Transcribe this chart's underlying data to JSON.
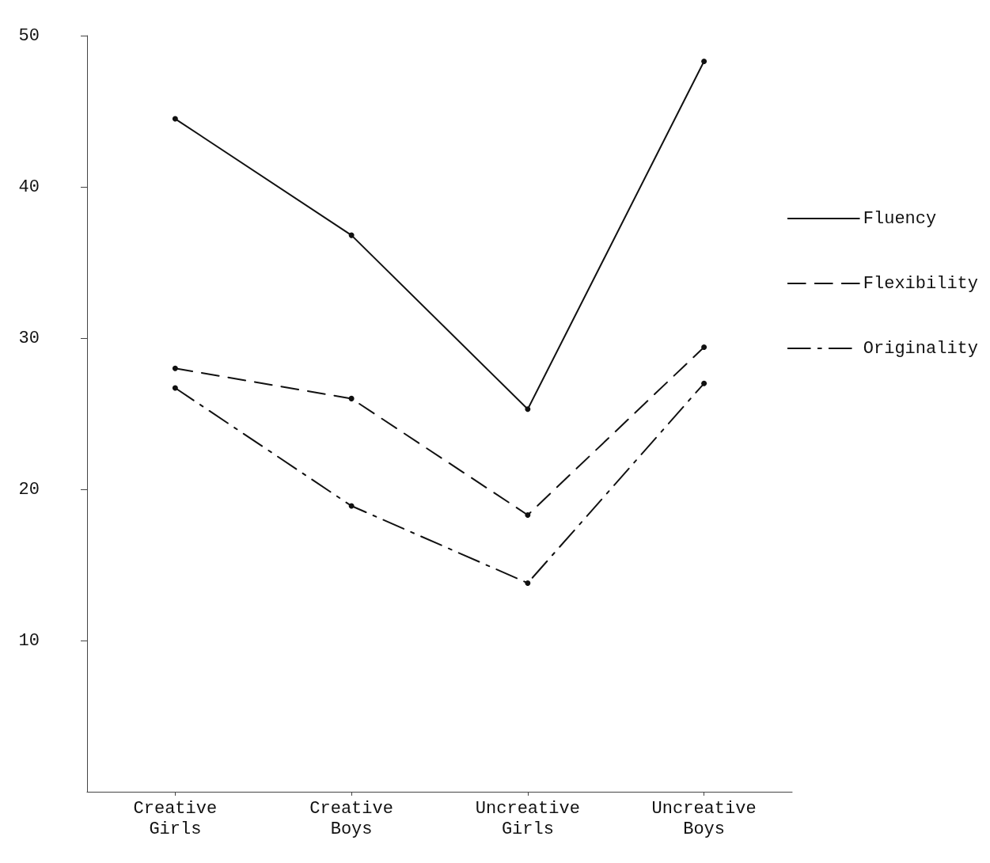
{
  "chart_data": {
    "type": "line",
    "categories": [
      "Creative\nGirls",
      "Creative\nBoys",
      "Uncreative\nGirls",
      "Uncreative\nBoys"
    ],
    "series": [
      {
        "name": "Fluency",
        "color": "#111111",
        "line_style": "solid",
        "values": [
          44.5,
          36.8,
          25.3,
          48.3
        ]
      },
      {
        "name": "Flexibility",
        "color": "#111111",
        "line_style": "dashed",
        "values": [
          28.0,
          26.0,
          18.3,
          29.4
        ]
      },
      {
        "name": "Originality",
        "color": "#111111",
        "line_style": "dashdot",
        "values": [
          26.7,
          18.9,
          13.8,
          27.0
        ]
      }
    ],
    "ylim": [
      0,
      50
    ],
    "yticks": [
      10,
      20,
      30,
      40,
      50
    ],
    "grid": false,
    "legend": "right",
    "marker": "circle"
  }
}
